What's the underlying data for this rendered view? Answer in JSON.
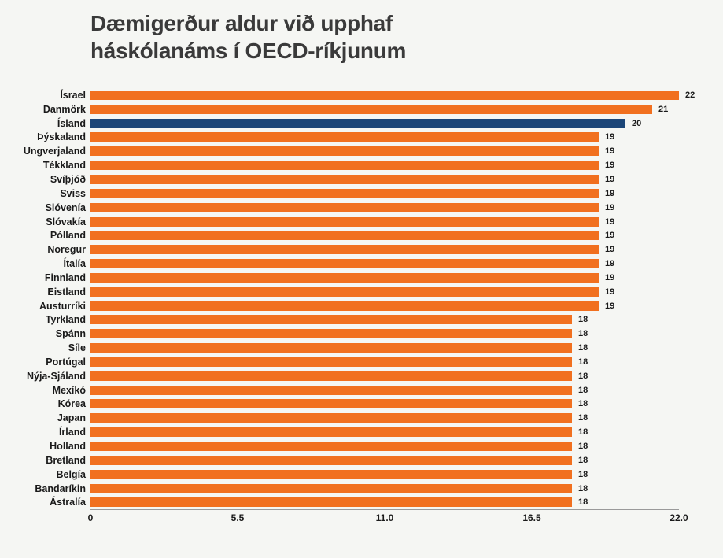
{
  "title": {
    "lines": [
      "Dæmigerður aldur við upphaf",
      "háskólanáms í OECD-ríkjunum"
    ]
  },
  "colors": {
    "background": "#f5f6f3",
    "bar_orange": "#f1701f",
    "bar_highlight_blue": "#1c4678",
    "axis_line": "#9a9a9a",
    "text_dark": "#1a1a1a",
    "title_gray": "#3a3a3a"
  },
  "chart_data": {
    "type": "bar",
    "orientation": "horizontal",
    "title": "Dæmigerður aldur við upphaf háskólanáms í OECD-ríkjunum",
    "xlabel": "",
    "ylabel": "",
    "grid": false,
    "legend_position": "none",
    "xlim": [
      0,
      22
    ],
    "categories": [
      "Ísrael",
      "Danmörk",
      "Ísland",
      "Þýskaland",
      "Ungverjaland",
      "Tékkland",
      "Svíþjóð",
      "Sviss",
      "Slóvenía",
      "Slóvakía",
      "Pólland",
      "Noregur",
      "Ítalía",
      "Finnland",
      "Eistland",
      "Austurríki",
      "Tyrkland",
      "Spánn",
      "Síle",
      "Portúgal",
      "Nýja-Sjáland",
      "Mexíkó",
      "Kórea",
      "Japan",
      "Írland",
      "Holland",
      "Bretland",
      "Belgía",
      "Bandaríkin",
      "Ástralía"
    ],
    "values": [
      22,
      21,
      20,
      19,
      19,
      19,
      19,
      19,
      19,
      19,
      19,
      19,
      19,
      19,
      19,
      19,
      18,
      18,
      18,
      18,
      18,
      18,
      18,
      18,
      18,
      18,
      18,
      18,
      18,
      18
    ],
    "value_labels": [
      "22",
      "21",
      "20",
      "19",
      "19",
      "19",
      "19",
      "19",
      "19",
      "19",
      "19",
      "19",
      "19",
      "19",
      "19",
      "19",
      "18",
      "18",
      "18",
      "18",
      "18",
      "18",
      "18",
      "18",
      "18",
      "18",
      "18",
      "18",
      "18",
      "18"
    ],
    "highlight_category": "Ísland",
    "highlight_index": 2,
    "bar_color": "#f1701f",
    "highlight_color": "#1c4678",
    "x_ticks": [
      {
        "value": 0,
        "label": "0"
      },
      {
        "value": 5.5,
        "label": "5.5"
      },
      {
        "value": 11,
        "label": "11.0"
      },
      {
        "value": 16.5,
        "label": "16.5"
      },
      {
        "value": 22,
        "label": "22.0"
      }
    ]
  }
}
